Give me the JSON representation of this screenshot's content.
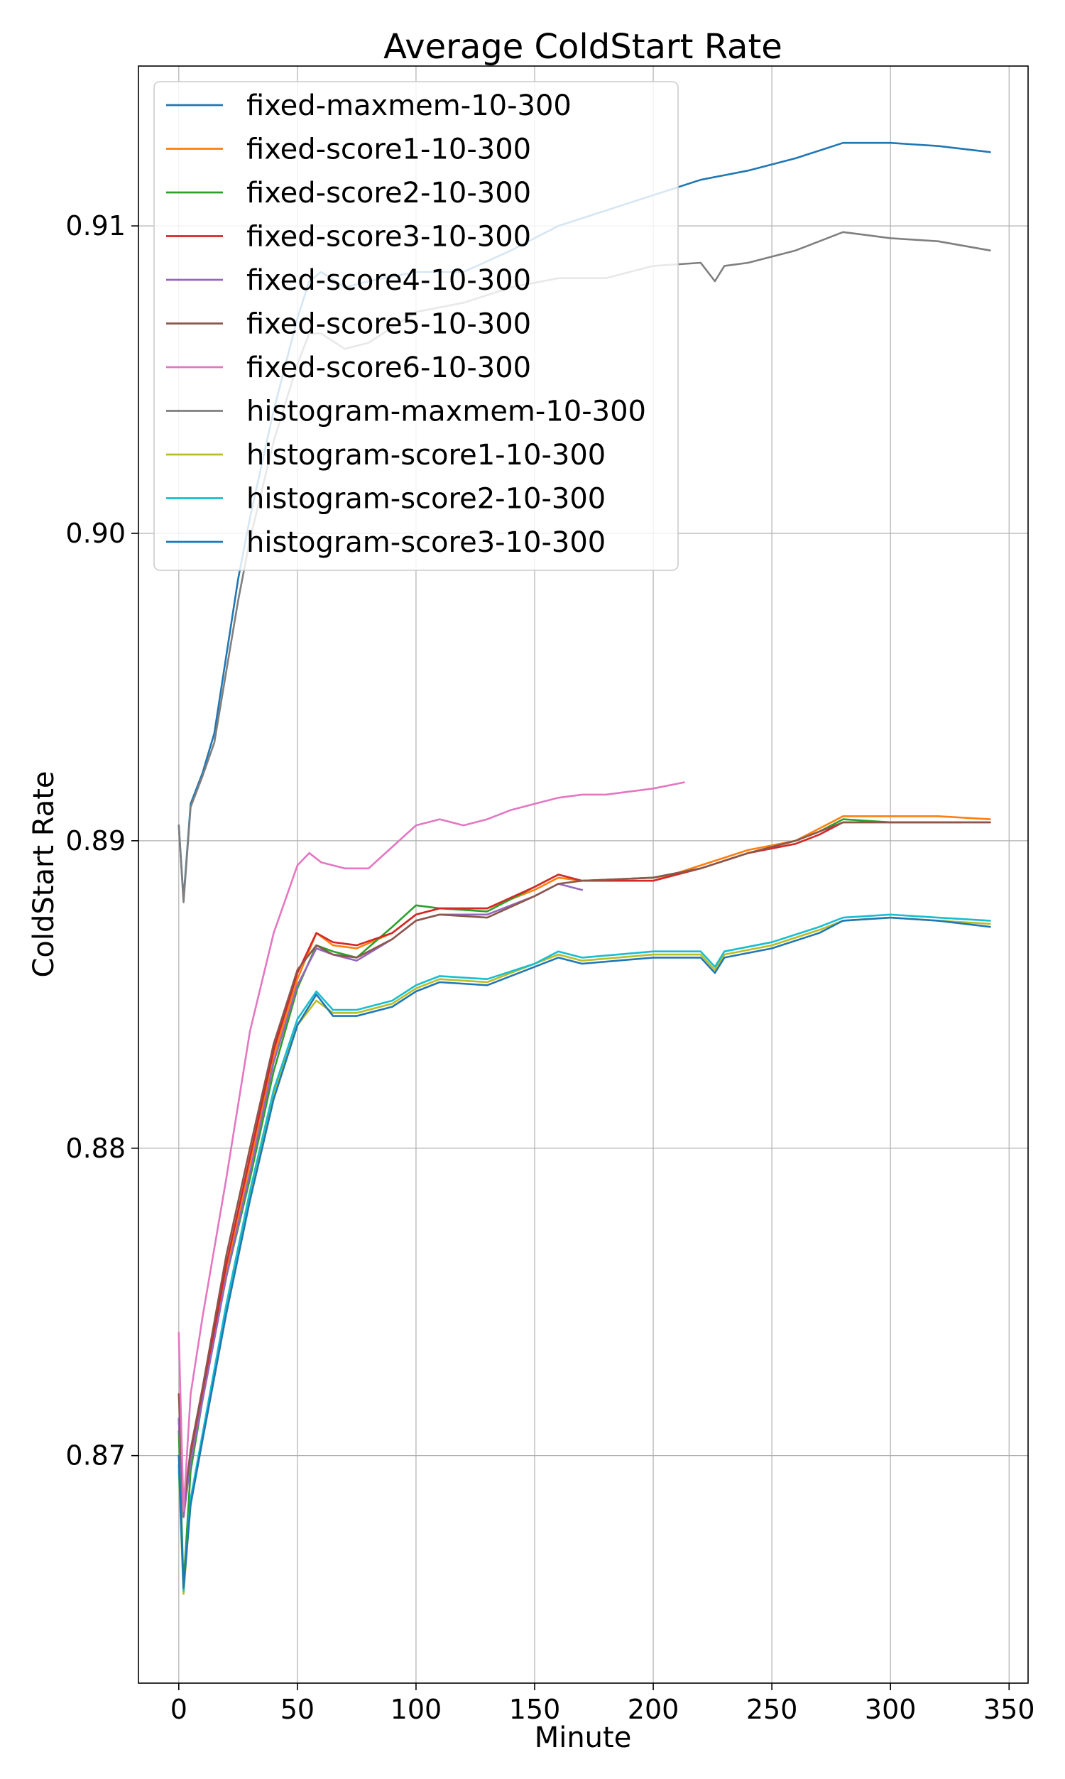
{
  "chart_data": {
    "type": "line",
    "title": "Average ColdStart Rate",
    "xlabel": "Minute",
    "ylabel": "ColdStart Rate",
    "xlim": [
      -17,
      358
    ],
    "ylim": [
      0.8626,
      0.9152
    ],
    "xticks": [
      0,
      50,
      100,
      150,
      200,
      250,
      300,
      350
    ],
    "xtick_labels": [
      "0",
      "50",
      "100",
      "150",
      "200",
      "250",
      "300",
      "350"
    ],
    "yticks": [
      0.87,
      0.88,
      0.89,
      0.9,
      0.91
    ],
    "ytick_labels": [
      "0.87",
      "0.88",
      "0.89",
      "0.90",
      "0.91"
    ],
    "grid": true,
    "legend_position": "top-left",
    "series": [
      {
        "name": "fixed-maxmem-10-300",
        "color": "#1f77b4",
        "x": [
          0,
          2,
          5,
          10,
          15,
          20,
          25,
          30,
          40,
          50,
          55,
          60,
          70,
          80,
          100,
          120,
          140,
          160,
          180,
          200,
          220,
          240,
          260,
          280,
          290,
          300,
          320,
          342
        ],
        "y": [
          0.8905,
          0.8881,
          0.8912,
          0.8922,
          0.8935,
          0.896,
          0.8985,
          0.9005,
          0.904,
          0.907,
          0.9082,
          0.9085,
          0.908,
          0.9082,
          0.9085,
          0.9085,
          0.9092,
          0.91,
          0.9105,
          0.911,
          0.9115,
          0.9118,
          0.9122,
          0.9127,
          0.9127,
          0.9127,
          0.9126,
          0.9124
        ]
      },
      {
        "name": "histogram-maxmem-10-300",
        "color": "#7f7f7f",
        "x": [
          0,
          2,
          5,
          10,
          15,
          20,
          25,
          30,
          40,
          50,
          55,
          60,
          70,
          80,
          100,
          120,
          140,
          160,
          180,
          200,
          220,
          226,
          230,
          240,
          260,
          280,
          290,
          300,
          320,
          342
        ],
        "y": [
          0.8905,
          0.888,
          0.8911,
          0.8921,
          0.8932,
          0.8955,
          0.8978,
          0.8998,
          0.903,
          0.9055,
          0.9065,
          0.9065,
          0.906,
          0.9062,
          0.9072,
          0.9075,
          0.908,
          0.9083,
          0.9083,
          0.9087,
          0.9088,
          0.9082,
          0.9087,
          0.9088,
          0.9092,
          0.9098,
          0.9097,
          0.9096,
          0.9095,
          0.9092
        ]
      },
      {
        "name": "fixed-score1-10-300",
        "color": "#ff7f0e",
        "x": [
          0,
          2,
          5,
          10,
          20,
          30,
          40,
          50,
          58,
          65,
          75,
          90,
          100,
          110,
          130,
          150,
          160,
          170,
          200,
          220,
          240,
          260,
          270,
          280,
          300,
          320,
          342
        ],
        "y": [
          0.8712,
          0.868,
          0.87,
          0.872,
          0.876,
          0.8795,
          0.883,
          0.8855,
          0.887,
          0.8866,
          0.8865,
          0.887,
          0.8876,
          0.8878,
          0.8878,
          0.8884,
          0.8888,
          0.8887,
          0.8887,
          0.8892,
          0.8897,
          0.89,
          0.8904,
          0.8908,
          0.8908,
          0.8908,
          0.8907
        ]
      },
      {
        "name": "fixed-score2-10-300",
        "color": "#2ca02c",
        "x": [
          0,
          2,
          5,
          10,
          20,
          30,
          40,
          50,
          58,
          65,
          75,
          90,
          100,
          110,
          130,
          150,
          160,
          170,
          200,
          220,
          240,
          260,
          270,
          280,
          300,
          320,
          330
        ],
        "y": [
          0.8708,
          0.8658,
          0.8695,
          0.8718,
          0.8758,
          0.879,
          0.8825,
          0.8852,
          0.8866,
          0.8864,
          0.8862,
          0.8872,
          0.8879,
          0.8878,
          0.8877,
          0.8885,
          0.8889,
          0.8887,
          0.8888,
          0.8891,
          0.8896,
          0.89,
          0.8903,
          0.8907,
          0.8906,
          0.8906,
          0.8906
        ]
      },
      {
        "name": "fixed-score3-10-300",
        "color": "#d62728",
        "x": [
          0,
          2,
          5,
          10,
          20,
          30,
          40,
          50,
          58,
          65,
          75,
          90,
          100,
          110,
          130,
          150,
          160,
          170,
          200,
          220,
          240,
          260,
          270,
          280,
          300,
          320,
          342
        ],
        "y": [
          0.8712,
          0.8682,
          0.87,
          0.872,
          0.8762,
          0.8797,
          0.8832,
          0.8857,
          0.887,
          0.8867,
          0.8866,
          0.887,
          0.8876,
          0.8878,
          0.8878,
          0.8885,
          0.8889,
          0.8887,
          0.8887,
          0.8891,
          0.8896,
          0.8899,
          0.8902,
          0.8906,
          0.8906,
          0.8906,
          0.8906
        ]
      },
      {
        "name": "fixed-score4-10-300",
        "color": "#9467bd",
        "x": [
          0,
          2,
          5,
          10,
          20,
          30,
          40,
          50,
          58,
          65,
          75,
          90,
          100,
          110,
          130,
          150,
          160,
          170
        ],
        "y": [
          0.8712,
          0.868,
          0.8698,
          0.8718,
          0.8758,
          0.8792,
          0.8828,
          0.8853,
          0.8865,
          0.8863,
          0.8861,
          0.8868,
          0.8874,
          0.8876,
          0.8876,
          0.8882,
          0.8886,
          0.8884
        ]
      },
      {
        "name": "fixed-score5-10-300",
        "color": "#8c564b",
        "x": [
          0,
          2,
          5,
          10,
          20,
          30,
          40,
          50,
          58,
          65,
          75,
          90,
          100,
          110,
          130,
          150,
          160,
          170,
          200,
          220,
          240,
          260,
          270,
          280,
          300,
          320,
          342
        ],
        "y": [
          0.872,
          0.8683,
          0.8702,
          0.8722,
          0.8765,
          0.88,
          0.8834,
          0.8858,
          0.8866,
          0.8863,
          0.8862,
          0.8868,
          0.8874,
          0.8876,
          0.8875,
          0.8882,
          0.8886,
          0.8887,
          0.8888,
          0.8891,
          0.8896,
          0.89,
          0.8903,
          0.8906,
          0.8906,
          0.8906,
          0.8906
        ]
      },
      {
        "name": "fixed-score6-10-300",
        "color": "#e377c2",
        "x": [
          0,
          2,
          5,
          10,
          20,
          30,
          40,
          50,
          55,
          60,
          70,
          80,
          90,
          100,
          110,
          120,
          130,
          140,
          150,
          160,
          170,
          180,
          190,
          200,
          213
        ],
        "y": [
          0.874,
          0.8682,
          0.872,
          0.8745,
          0.879,
          0.8838,
          0.887,
          0.8892,
          0.8896,
          0.8893,
          0.8891,
          0.8891,
          0.8898,
          0.8905,
          0.8907,
          0.8905,
          0.8907,
          0.891,
          0.8912,
          0.8914,
          0.8915,
          0.8915,
          0.8916,
          0.8917,
          0.8919
        ]
      },
      {
        "name": "histogram-score1-10-300",
        "color": "#bcbd22",
        "x": [
          0,
          2,
          5,
          10,
          20,
          30,
          40,
          50,
          58,
          65,
          75,
          90,
          100,
          110,
          130,
          150,
          160,
          170,
          200,
          220,
          226,
          230,
          250,
          270,
          280,
          300,
          320,
          342
        ],
        "y": [
          0.8695,
          0.8655,
          0.8685,
          0.8706,
          0.8748,
          0.8785,
          0.8818,
          0.884,
          0.8848,
          0.8844,
          0.8844,
          0.8847,
          0.8852,
          0.8855,
          0.8854,
          0.886,
          0.8863,
          0.8861,
          0.8863,
          0.8863,
          0.8858,
          0.8863,
          0.8866,
          0.8871,
          0.8874,
          0.8875,
          0.8874,
          0.8873
        ]
      },
      {
        "name": "histogram-score2-10-300",
        "color": "#17becf",
        "x": [
          0,
          2,
          5,
          10,
          20,
          30,
          40,
          50,
          58,
          65,
          75,
          90,
          100,
          110,
          130,
          150,
          160,
          170,
          200,
          220,
          226,
          230,
          250,
          270,
          280,
          300,
          320,
          342
        ],
        "y": [
          0.8697,
          0.8656,
          0.8686,
          0.8707,
          0.8749,
          0.8786,
          0.8819,
          0.8842,
          0.8851,
          0.8845,
          0.8845,
          0.8848,
          0.8853,
          0.8856,
          0.8855,
          0.886,
          0.8864,
          0.8862,
          0.8864,
          0.8864,
          0.8859,
          0.8864,
          0.8867,
          0.8872,
          0.8875,
          0.8876,
          0.8875,
          0.8874
        ]
      },
      {
        "name": "histogram-score3-10-300",
        "color": "#1f77b4",
        "x": [
          0,
          2,
          5,
          10,
          20,
          30,
          40,
          50,
          58,
          65,
          75,
          90,
          100,
          110,
          130,
          150,
          160,
          170,
          200,
          220,
          226,
          230,
          250,
          270,
          280,
          300,
          320,
          342
        ],
        "y": [
          0.87,
          0.8657,
          0.8684,
          0.8705,
          0.8746,
          0.8783,
          0.8816,
          0.884,
          0.885,
          0.8843,
          0.8843,
          0.8846,
          0.8851,
          0.8854,
          0.8853,
          0.8859,
          0.8862,
          0.886,
          0.8862,
          0.8862,
          0.8857,
          0.8862,
          0.8865,
          0.887,
          0.8874,
          0.8875,
          0.8874,
          0.8872
        ]
      }
    ],
    "legend_order": [
      0,
      2,
      3,
      4,
      5,
      6,
      7,
      1,
      8,
      9,
      10
    ]
  }
}
